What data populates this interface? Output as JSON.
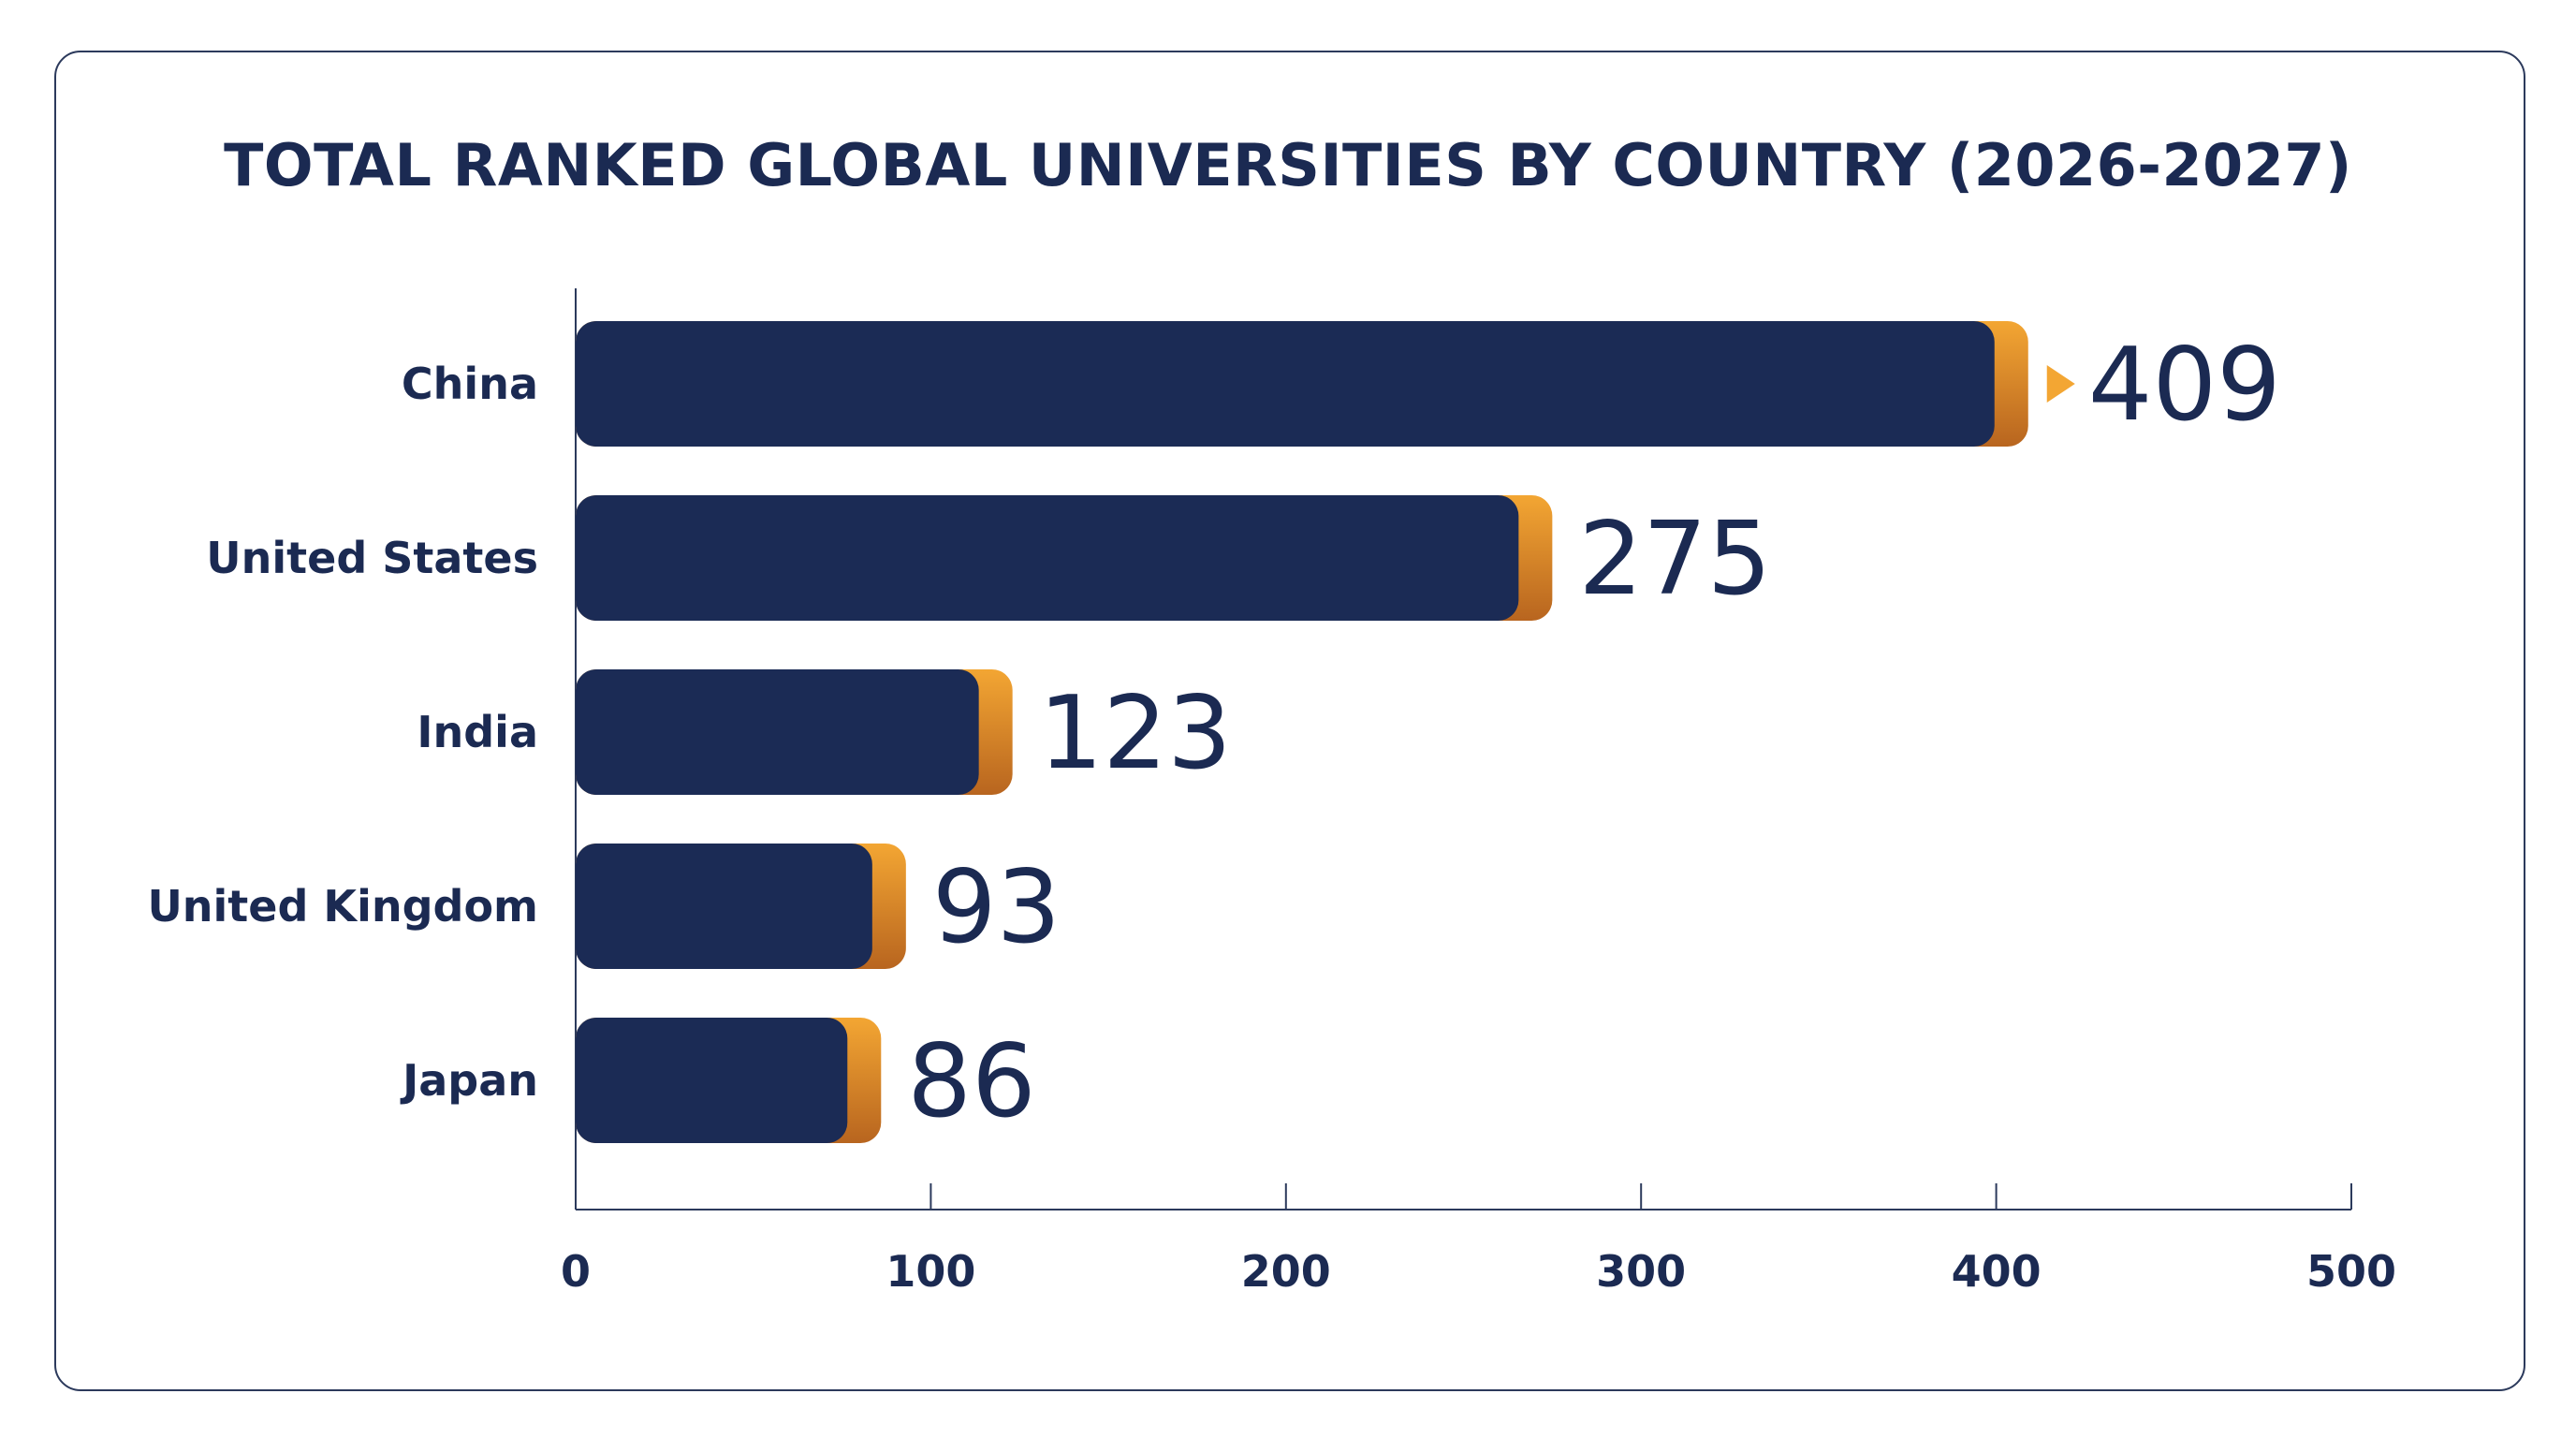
{
  "chart_data": {
    "type": "bar",
    "orientation": "horizontal",
    "title": "TOTAL RANKED GLOBAL UNIVERSITIES BY COUNTRY (2026-2027)",
    "categories": [
      "China",
      "United States",
      "India",
      "United Kingdom",
      "Japan"
    ],
    "values": [
      409,
      275,
      123,
      93,
      86
    ],
    "value_labels": [
      "409",
      "275",
      "123",
      "93",
      "86"
    ],
    "xlim": [
      0,
      500
    ],
    "xticks": [
      0,
      100,
      200,
      300,
      400,
      500
    ],
    "xtick_labels": [
      "0",
      "100",
      "200",
      "300",
      "400",
      "500"
    ],
    "xlabel": "",
    "ylabel": "",
    "grid": false,
    "legend": "none",
    "highlight_index": 0,
    "colors": {
      "bar": "#1b2b55",
      "accent_light": "#f3a633",
      "accent_dark": "#b8651f",
      "text": "#1b2a52",
      "axis": "#2c3a5c"
    }
  }
}
